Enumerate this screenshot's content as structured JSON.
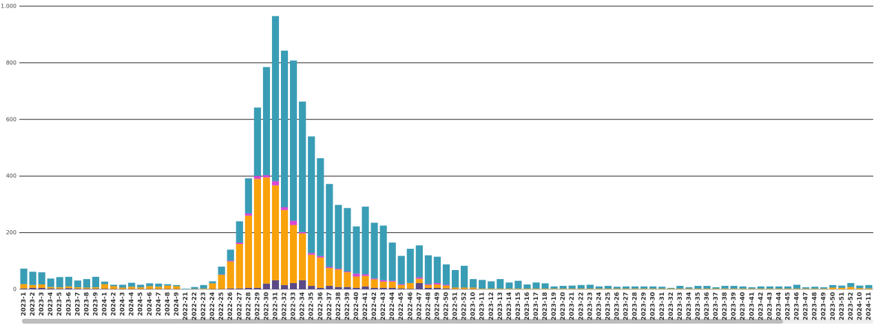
{
  "chart_data": {
    "type": "stacked_bar",
    "categories": [
      "2023-1",
      "2023-2",
      "2023-3",
      "2023-4",
      "2023-5",
      "2023-6",
      "2023-7",
      "2023-8",
      "2023-9",
      "2024-1",
      "2024-2",
      "2024-3",
      "2024-4",
      "2024-5",
      "2024-6",
      "2024-7",
      "2024-8",
      "2024-9",
      "2022-21",
      "2022-22",
      "2022-23",
      "2022-24",
      "2022-25",
      "2022-26",
      "2022-27",
      "2022-28",
      "2022-29",
      "2022-30",
      "2022-31",
      "2022-32",
      "2022-33",
      "2022-34",
      "2022-35",
      "2022-36",
      "2022-37",
      "2022-38",
      "2022-39",
      "2022-40",
      "2022-41",
      "2022-42",
      "2022-43",
      "2022-44",
      "2022-45",
      "2022-46",
      "2022-47",
      "2022-48",
      "2022-49",
      "2022-50",
      "2022-51",
      "2022-52",
      "2023-10",
      "2023-11",
      "2023-12",
      "2023-13",
      "2023-14",
      "2023-15",
      "2023-16",
      "2023-17",
      "2023-18",
      "2023-19",
      "2023-20",
      "2023-21",
      "2023-22",
      "2023-23",
      "2023-24",
      "2023-25",
      "2023-26",
      "2023-27",
      "2023-28",
      "2023-29",
      "2023-30",
      "2023-31",
      "2023-32",
      "2023-33",
      "2023-34",
      "2023-35",
      "2023-36",
      "2023-37",
      "2023-38",
      "2023-39",
      "2023-40",
      "2023-41",
      "2023-42",
      "2023-43",
      "2023-44",
      "2023-45",
      "2023-46",
      "2023-47",
      "2023-48",
      "2023-49",
      "2023-50",
      "2023-51",
      "2023-52",
      "2024-10",
      "2024-11"
    ],
    "series": [
      {
        "color": "#5b4a86",
        "values": [
          3,
          5,
          5,
          3,
          2,
          4,
          2,
          2,
          2,
          2,
          1,
          1,
          1,
          1,
          1,
          1,
          1,
          1,
          0,
          0,
          0,
          1,
          1,
          3,
          3,
          5,
          5,
          20,
          32,
          15,
          22,
          32,
          12,
          5,
          12,
          8,
          8,
          5,
          10,
          5,
          5,
          5,
          3,
          2,
          22,
          5,
          5,
          3,
          1,
          1,
          1,
          0,
          0,
          0,
          0,
          0,
          0,
          0,
          0,
          0,
          0,
          0,
          0,
          0,
          0,
          0,
          0,
          0,
          0,
          0,
          0,
          0,
          0,
          0,
          0,
          0,
          0,
          0,
          0,
          0,
          0,
          0,
          0,
          0,
          0,
          0,
          0,
          0,
          0,
          0,
          0,
          0,
          0,
          0,
          0
        ]
      },
      {
        "color": "#f9a20b",
        "values": [
          15,
          10,
          12,
          5,
          5,
          6,
          5,
          4,
          5,
          16,
          10,
          5,
          8,
          6,
          10,
          8,
          12,
          10,
          0,
          1,
          2,
          20,
          50,
          95,
          157,
          255,
          385,
          375,
          335,
          265,
          205,
          165,
          110,
          107,
          63,
          62,
          52,
          40,
          37,
          30,
          22,
          22,
          12,
          20,
          15,
          10,
          12,
          10,
          5,
          5,
          5,
          2,
          2,
          2,
          2,
          2,
          2,
          2,
          2,
          2,
          2,
          2,
          2,
          2,
          2,
          2,
          2,
          2,
          2,
          2,
          2,
          2,
          2,
          2,
          2,
          2,
          2,
          2,
          2,
          2,
          2,
          2,
          2,
          2,
          2,
          2,
          2,
          2,
          2,
          2,
          6,
          5,
          8,
          4,
          3
        ]
      },
      {
        "color": "#d946d6",
        "values": [
          0,
          0,
          0,
          0,
          0,
          0,
          0,
          0,
          0,
          0,
          0,
          0,
          0,
          0,
          0,
          0,
          0,
          0,
          0,
          0,
          0,
          0,
          1,
          3,
          5,
          8,
          10,
          8,
          15,
          10,
          15,
          5,
          6,
          5,
          4,
          3,
          3,
          10,
          6,
          3,
          5,
          3,
          3,
          0,
          5,
          3,
          5,
          3,
          0,
          0,
          0,
          0,
          0,
          0,
          0,
          0,
          0,
          0,
          0,
          0,
          0,
          0,
          0,
          0,
          0,
          0,
          0,
          0,
          0,
          0,
          0,
          0,
          0,
          0,
          0,
          0,
          0,
          0,
          0,
          0,
          0,
          0,
          0,
          0,
          0,
          0,
          0,
          0,
          0,
          0,
          0,
          0,
          0,
          0,
          0
        ]
      },
      {
        "color": "#3a9db6",
        "values": [
          55,
          47,
          43,
          30,
          36,
          34,
          24,
          30,
          37,
          9,
          5,
          10,
          14,
          9,
          10,
          11,
          5,
          4,
          2,
          7,
          13,
          7,
          28,
          39,
          75,
          124,
          242,
          382,
          583,
          553,
          566,
          461,
          412,
          346,
          293,
          225,
          224,
          167,
          239,
          197,
          193,
          135,
          100,
          121,
          113,
          102,
          93,
          72,
          62,
          77,
          30,
          31,
          26,
          34,
          22,
          28,
          15,
          22,
          19,
          8,
          10,
          11,
          13,
          14,
          8,
          10,
          7,
          8,
          8,
          8,
          8,
          7,
          3,
          10,
          5,
          10,
          10,
          5,
          10,
          10,
          8,
          5,
          8,
          8,
          8,
          8,
          14,
          5,
          7,
          5,
          9,
          8,
          14,
          9,
          12
        ]
      }
    ],
    "ylim": [
      0,
      1000
    ],
    "yticks": [
      0,
      200,
      400,
      600,
      800,
      {
        "value": 1000,
        "label": "1.000"
      }
    ],
    "grid": true
  }
}
